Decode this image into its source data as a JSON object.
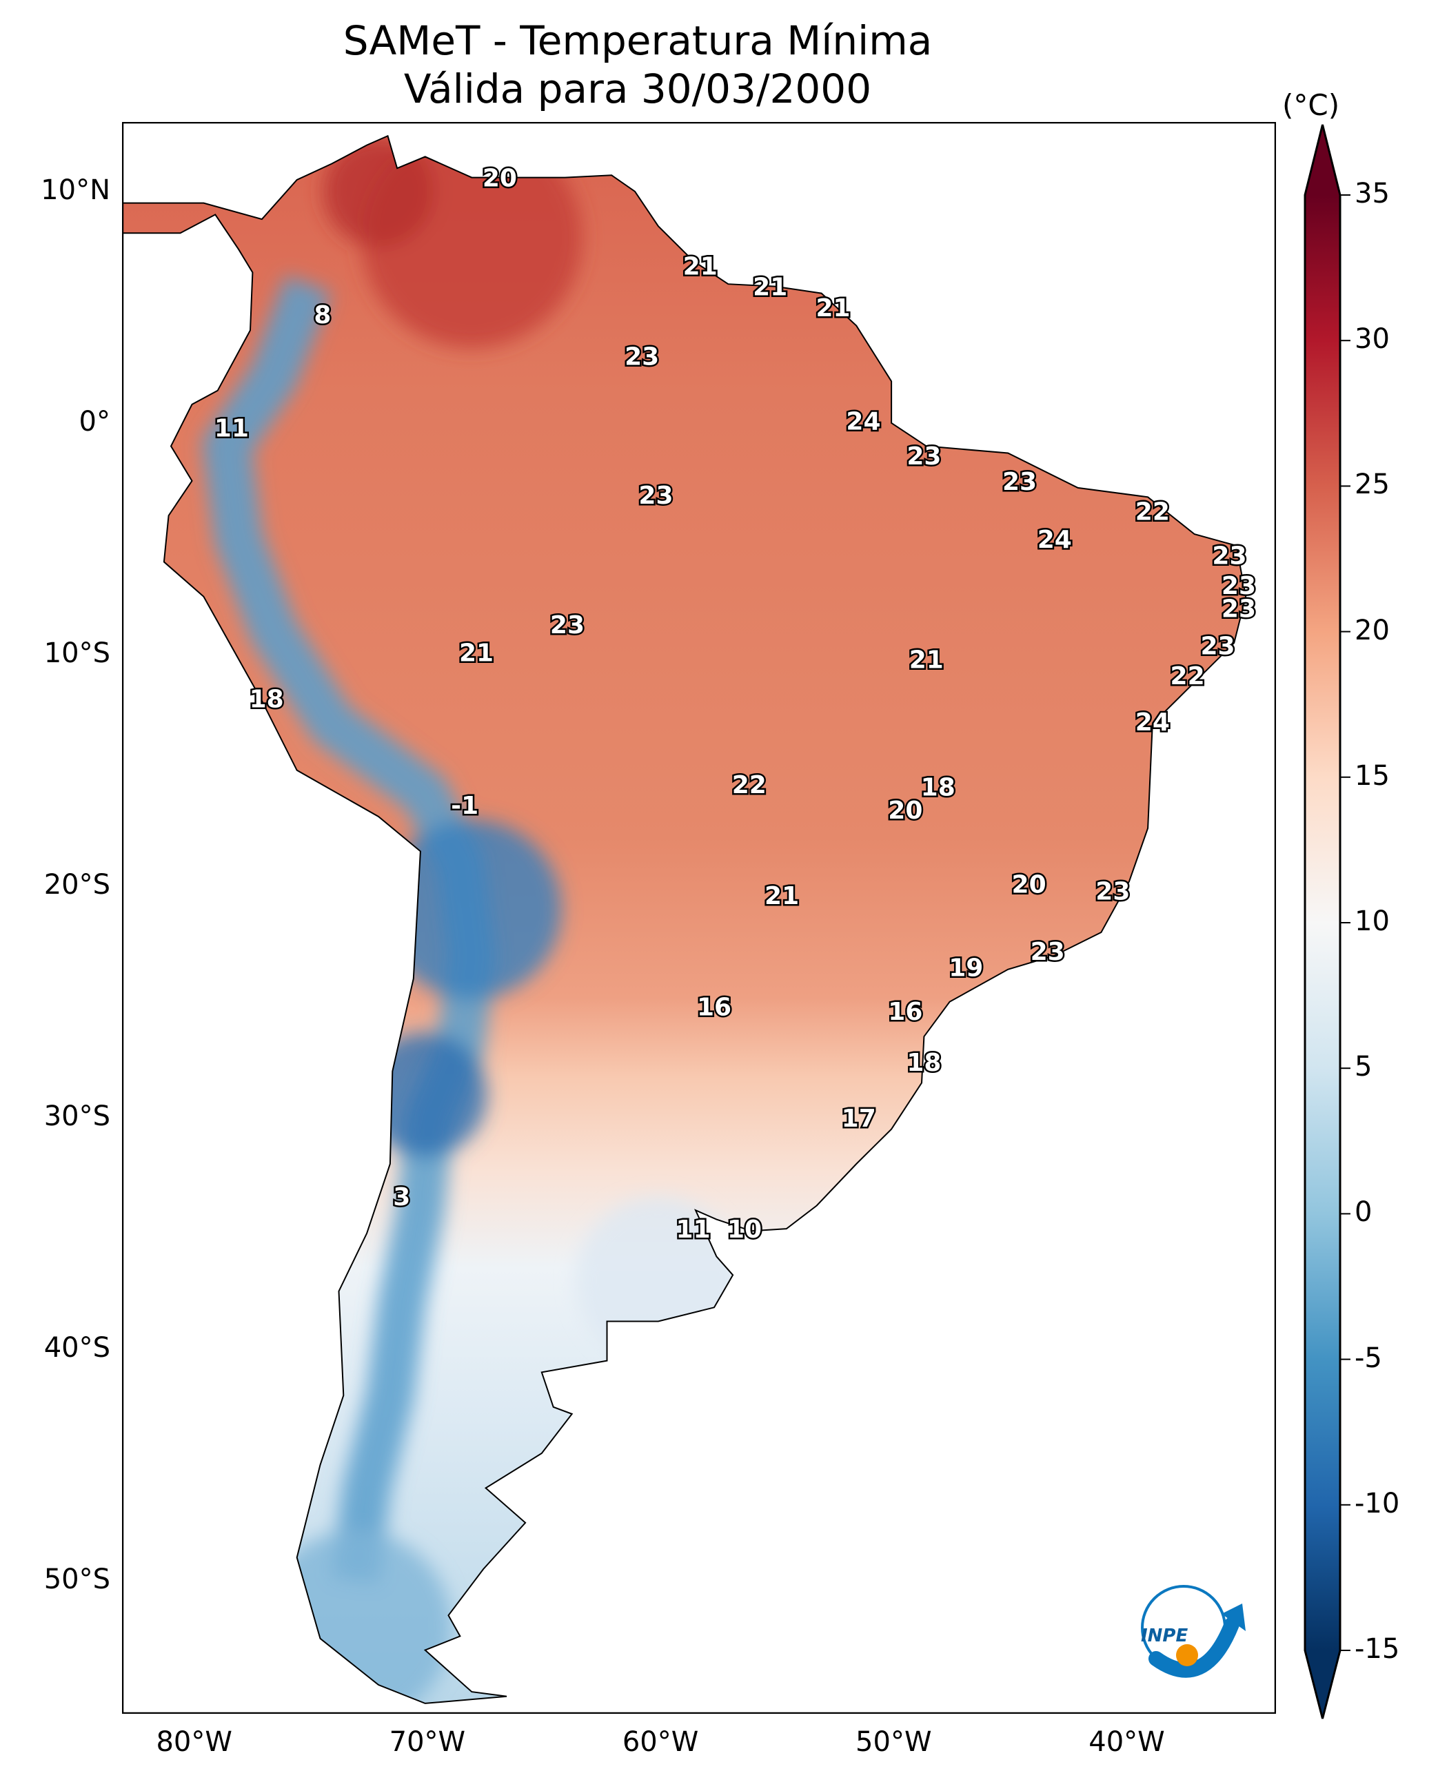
{
  "title": {
    "line1": "SAMeT - Temperatura Mínima",
    "line2": "Válida para 30/03/2000"
  },
  "map": {
    "lon_range": [
      -83,
      -33.5
    ],
    "lat_range": [
      -55.7,
      13
    ],
    "x_ticks": [
      {
        "lon": -80,
        "label": "80°W"
      },
      {
        "lon": -70,
        "label": "70°W"
      },
      {
        "lon": -60,
        "label": "60°W"
      },
      {
        "lon": -50,
        "label": "50°W"
      },
      {
        "lon": -40,
        "label": "40°W"
      }
    ],
    "y_ticks": [
      {
        "lat": 10,
        "label": "10°N"
      },
      {
        "lat": 0,
        "label": "0°"
      },
      {
        "lat": -10,
        "label": "10°S"
      },
      {
        "lat": -20,
        "label": "20°S"
      },
      {
        "lat": -30,
        "label": "30°S"
      },
      {
        "lat": -40,
        "label": "40°S"
      },
      {
        "lat": -50,
        "label": "50°S"
      }
    ],
    "station_labels": [
      {
        "v": "20",
        "lon": -66.8,
        "lat": 10.6
      },
      {
        "v": "8",
        "lon": -74.4,
        "lat": 4.7
      },
      {
        "v": "21",
        "lon": -58.2,
        "lat": 6.8
      },
      {
        "v": "21",
        "lon": -55.2,
        "lat": 5.9
      },
      {
        "v": "21",
        "lon": -52.5,
        "lat": 5.0
      },
      {
        "v": "23",
        "lon": -60.7,
        "lat": 2.9
      },
      {
        "v": "11",
        "lon": -78.3,
        "lat": -0.2
      },
      {
        "v": "24",
        "lon": -51.2,
        "lat": 0.1
      },
      {
        "v": "23",
        "lon": -48.6,
        "lat": -1.4
      },
      {
        "v": "23",
        "lon": -60.1,
        "lat": -3.1
      },
      {
        "v": "23",
        "lon": -44.5,
        "lat": -2.5
      },
      {
        "v": "22",
        "lon": -38.8,
        "lat": -3.8
      },
      {
        "v": "24",
        "lon": -43.0,
        "lat": -5.0
      },
      {
        "v": "23",
        "lon": -35.5,
        "lat": -5.7
      },
      {
        "v": "23",
        "lon": -35.1,
        "lat": -7.0
      },
      {
        "v": "23",
        "lon": -35.1,
        "lat": -8.0
      },
      {
        "v": "23",
        "lon": -63.9,
        "lat": -8.7
      },
      {
        "v": "23",
        "lon": -36.0,
        "lat": -9.6
      },
      {
        "v": "21",
        "lon": -67.8,
        "lat": -9.9
      },
      {
        "v": "21",
        "lon": -48.5,
        "lat": -10.2
      },
      {
        "v": "22",
        "lon": -37.3,
        "lat": -10.9
      },
      {
        "v": "18",
        "lon": -76.8,
        "lat": -11.9
      },
      {
        "v": "24",
        "lon": -38.8,
        "lat": -12.9
      },
      {
        "v": "22",
        "lon": -56.1,
        "lat": -15.6
      },
      {
        "v": "18",
        "lon": -48.0,
        "lat": -15.7
      },
      {
        "v": "-1",
        "lon": -68.3,
        "lat": -16.5
      },
      {
        "v": "20",
        "lon": -49.4,
        "lat": -16.7
      },
      {
        "v": "20",
        "lon": -44.1,
        "lat": -19.9
      },
      {
        "v": "23",
        "lon": -40.5,
        "lat": -20.2
      },
      {
        "v": "21",
        "lon": -54.7,
        "lat": -20.4
      },
      {
        "v": "23",
        "lon": -43.3,
        "lat": -22.8
      },
      {
        "v": "19",
        "lon": -46.8,
        "lat": -23.5
      },
      {
        "v": "16",
        "lon": -57.6,
        "lat": -25.2
      },
      {
        "v": "16",
        "lon": -49.4,
        "lat": -25.4
      },
      {
        "v": "18",
        "lon": -48.6,
        "lat": -27.6
      },
      {
        "v": "17",
        "lon": -51.4,
        "lat": -30.0
      },
      {
        "v": "3",
        "lon": -71.0,
        "lat": -33.4
      },
      {
        "v": "11",
        "lon": -58.5,
        "lat": -34.8
      },
      {
        "v": "10",
        "lon": -56.3,
        "lat": -34.8
      }
    ]
  },
  "colorbar": {
    "unit": "(°C)",
    "min": -15,
    "max": 35,
    "ticks": [
      "35",
      "30",
      "25",
      "20",
      "15",
      "10",
      "5",
      "0",
      "-5",
      "-10",
      "-15"
    ],
    "colors": [
      "#053061",
      "#2166ac",
      "#4393c3",
      "#92c5de",
      "#d1e5f0",
      "#f7f7f7",
      "#fddbc7",
      "#f4a582",
      "#d6604d",
      "#b2182b",
      "#67001f"
    ]
  },
  "logo": {
    "text": "INPE",
    "blue": "#0b78c0",
    "orange": "#f39200"
  }
}
